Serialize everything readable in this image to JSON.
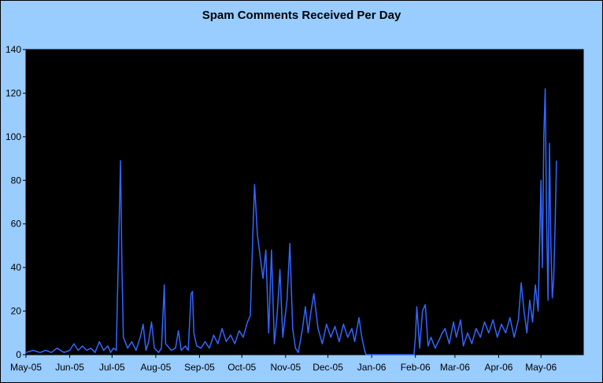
{
  "chart_data": {
    "type": "line",
    "title": "Spam Comments Received Per Day",
    "xlabel": "",
    "ylabel": "",
    "ylim": [
      0,
      140
    ],
    "yticks": [
      0,
      20,
      40,
      60,
      80,
      100,
      120,
      140
    ],
    "xlim": [
      "2005-05-01",
      "2006-05-31"
    ],
    "xticks": [
      "May-05",
      "Jun-05",
      "Jul-05",
      "Aug-05",
      "Sep-05",
      "Oct-05",
      "Nov-05",
      "Dec-05",
      "Jan-06",
      "Feb-06",
      "Mar-06",
      "Apr-06",
      "May-06"
    ],
    "grid": false,
    "legend": "none",
    "colors": {
      "frame_background": "#99ccff",
      "plot_background": "#000000",
      "series_line": "#3366ff",
      "axis": "#000000"
    },
    "series": [
      {
        "values": [
          [
            "2005-05-01",
            1
          ],
          [
            "2005-05-06",
            2
          ],
          [
            "2005-05-11",
            1
          ],
          [
            "2005-05-15",
            2
          ],
          [
            "2005-05-19",
            1
          ],
          [
            "2005-05-23",
            3
          ],
          [
            "2005-05-28",
            1
          ],
          [
            "2005-06-01",
            2
          ],
          [
            "2005-06-04",
            5
          ],
          [
            "2005-06-07",
            2
          ],
          [
            "2005-06-10",
            4
          ],
          [
            "2005-06-13",
            2
          ],
          [
            "2005-06-16",
            3
          ],
          [
            "2005-06-19",
            1
          ],
          [
            "2005-06-22",
            6
          ],
          [
            "2005-06-25",
            2
          ],
          [
            "2005-06-28",
            4
          ],
          [
            "2005-06-30",
            1
          ],
          [
            "2005-07-02",
            3
          ],
          [
            "2005-07-04",
            2
          ],
          [
            "2005-07-06",
            60
          ],
          [
            "2005-07-07",
            89
          ],
          [
            "2005-07-08",
            40
          ],
          [
            "2005-07-09",
            8
          ],
          [
            "2005-07-12",
            3
          ],
          [
            "2005-07-15",
            6
          ],
          [
            "2005-07-18",
            2
          ],
          [
            "2005-07-21",
            8
          ],
          [
            "2005-07-23",
            14
          ],
          [
            "2005-07-25",
            2
          ],
          [
            "2005-07-27",
            6
          ],
          [
            "2005-07-29",
            15
          ],
          [
            "2005-07-31",
            3
          ],
          [
            "2005-08-03",
            1
          ],
          [
            "2005-08-05",
            3
          ],
          [
            "2005-08-07",
            32
          ],
          [
            "2005-08-08",
            5
          ],
          [
            "2005-08-12",
            2
          ],
          [
            "2005-08-15",
            3
          ],
          [
            "2005-08-17",
            11
          ],
          [
            "2005-08-19",
            2
          ],
          [
            "2005-08-22",
            4
          ],
          [
            "2005-08-24",
            2
          ],
          [
            "2005-08-26",
            28
          ],
          [
            "2005-08-27",
            29
          ],
          [
            "2005-08-28",
            10
          ],
          [
            "2005-08-30",
            4
          ],
          [
            "2005-09-02",
            3
          ],
          [
            "2005-09-05",
            6
          ],
          [
            "2005-09-08",
            3
          ],
          [
            "2005-09-11",
            9
          ],
          [
            "2005-09-14",
            5
          ],
          [
            "2005-09-17",
            12
          ],
          [
            "2005-09-20",
            6
          ],
          [
            "2005-09-23",
            9
          ],
          [
            "2005-09-26",
            5
          ],
          [
            "2005-09-29",
            11
          ],
          [
            "2005-10-02",
            8
          ],
          [
            "2005-10-05",
            15
          ],
          [
            "2005-10-07",
            18
          ],
          [
            "2005-10-09",
            60
          ],
          [
            "2005-10-10",
            78
          ],
          [
            "2005-10-12",
            55
          ],
          [
            "2005-10-14",
            45
          ],
          [
            "2005-10-16",
            35
          ],
          [
            "2005-10-18",
            48
          ],
          [
            "2005-10-20",
            10
          ],
          [
            "2005-10-22",
            48
          ],
          [
            "2005-10-24",
            5
          ],
          [
            "2005-10-26",
            18
          ],
          [
            "2005-10-28",
            39
          ],
          [
            "2005-10-30",
            8
          ],
          [
            "2005-11-02",
            25
          ],
          [
            "2005-11-04",
            51
          ],
          [
            "2005-11-06",
            12
          ],
          [
            "2005-11-08",
            3
          ],
          [
            "2005-11-10",
            1
          ],
          [
            "2005-11-13",
            12
          ],
          [
            "2005-11-15",
            22
          ],
          [
            "2005-11-17",
            10
          ],
          [
            "2005-11-19",
            20
          ],
          [
            "2005-11-21",
            28
          ],
          [
            "2005-11-24",
            12
          ],
          [
            "2005-11-27",
            5
          ],
          [
            "2005-11-30",
            14
          ],
          [
            "2005-12-03",
            8
          ],
          [
            "2005-12-06",
            13
          ],
          [
            "2005-12-09",
            6
          ],
          [
            "2005-12-12",
            14
          ],
          [
            "2005-12-15",
            8
          ],
          [
            "2005-12-18",
            12
          ],
          [
            "2005-12-20",
            6
          ],
          [
            "2005-12-23",
            17
          ],
          [
            "2005-12-25",
            8
          ],
          [
            "2005-12-27",
            2
          ],
          [
            "2005-12-28",
            0
          ],
          [
            "2006-01-10",
            0
          ],
          [
            "2006-01-25",
            0
          ],
          [
            "2006-01-31",
            0
          ],
          [
            "2006-02-01",
            8
          ],
          [
            "2006-02-02",
            22
          ],
          [
            "2006-02-04",
            3
          ],
          [
            "2006-02-06",
            20
          ],
          [
            "2006-02-08",
            23
          ],
          [
            "2006-02-10",
            4
          ],
          [
            "2006-02-12",
            8
          ],
          [
            "2006-02-15",
            3
          ],
          [
            "2006-02-18",
            7
          ],
          [
            "2006-02-20",
            10
          ],
          [
            "2006-02-22",
            12
          ],
          [
            "2006-02-25",
            5
          ],
          [
            "2006-02-28",
            15
          ],
          [
            "2006-03-02",
            8
          ],
          [
            "2006-03-05",
            16
          ],
          [
            "2006-03-07",
            4
          ],
          [
            "2006-03-10",
            10
          ],
          [
            "2006-03-13",
            5
          ],
          [
            "2006-03-16",
            12
          ],
          [
            "2006-03-19",
            8
          ],
          [
            "2006-03-22",
            15
          ],
          [
            "2006-03-25",
            10
          ],
          [
            "2006-03-28",
            16
          ],
          [
            "2006-03-31",
            8
          ],
          [
            "2006-04-03",
            14
          ],
          [
            "2006-04-06",
            10
          ],
          [
            "2006-04-09",
            17
          ],
          [
            "2006-04-12",
            8
          ],
          [
            "2006-04-15",
            16
          ],
          [
            "2006-04-17",
            33
          ],
          [
            "2006-04-19",
            20
          ],
          [
            "2006-04-21",
            10
          ],
          [
            "2006-04-23",
            25
          ],
          [
            "2006-04-25",
            15
          ],
          [
            "2006-04-27",
            32
          ],
          [
            "2006-04-29",
            20
          ],
          [
            "2006-05-01",
            80
          ],
          [
            "2006-05-02",
            40
          ],
          [
            "2006-05-03",
            100
          ],
          [
            "2006-05-04",
            122
          ],
          [
            "2006-05-05",
            60
          ],
          [
            "2006-05-06",
            25
          ],
          [
            "2006-05-07",
            97
          ],
          [
            "2006-05-08",
            50
          ],
          [
            "2006-05-09",
            26
          ],
          [
            "2006-05-10",
            35
          ],
          [
            "2006-05-11",
            60
          ],
          [
            "2006-05-12",
            89
          ]
        ]
      }
    ]
  }
}
